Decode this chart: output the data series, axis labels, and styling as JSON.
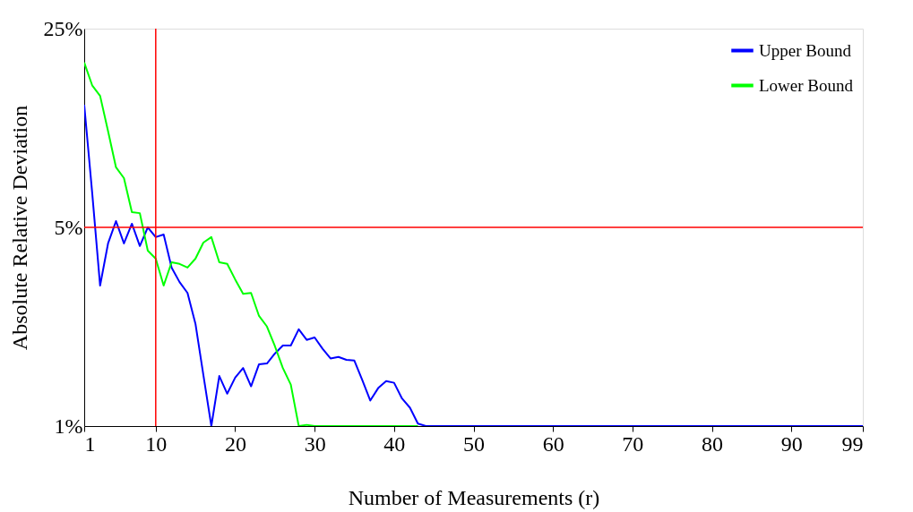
{
  "chart_data": {
    "type": "line",
    "xlabel": "Number of Measurements (r)",
    "ylabel": "Absolute Relative Deviation",
    "x": [
      1,
      2,
      3,
      4,
      5,
      6,
      7,
      8,
      9,
      10,
      11,
      12,
      13,
      14,
      15,
      16,
      17,
      18,
      19,
      20,
      21,
      22,
      23,
      24,
      25,
      26,
      27,
      28,
      29,
      30,
      31,
      32,
      33,
      34,
      35,
      36,
      37,
      38,
      39,
      40,
      41,
      42,
      43,
      44,
      45,
      46,
      47,
      48,
      49,
      50,
      51,
      52,
      53,
      54,
      55,
      56,
      57,
      58,
      59,
      60,
      61,
      62,
      63,
      64,
      65,
      66,
      67,
      68,
      69,
      70,
      71,
      72,
      73,
      74,
      75,
      76,
      77,
      78,
      79,
      80,
      81,
      82,
      83,
      84,
      85,
      86,
      87,
      88,
      89,
      90,
      91,
      92,
      93,
      94,
      95,
      96,
      97,
      98,
      99
    ],
    "series": [
      {
        "name": "Upper Bound",
        "color": "#0000ff",
        "values": [
          13.5,
          6.63,
          3.12,
          4.39,
          5.26,
          4.39,
          5.15,
          4.3,
          5.0,
          4.62,
          4.72,
          3.61,
          3.21,
          2.94,
          2.29,
          1.51,
          1.0,
          1.5,
          1.3,
          1.48,
          1.6,
          1.38,
          1.65,
          1.66,
          1.8,
          1.92,
          1.92,
          2.19,
          2.01,
          2.05,
          1.87,
          1.73,
          1.75,
          1.71,
          1.7,
          1.45,
          1.23,
          1.36,
          1.44,
          1.42,
          1.25,
          1.16,
          1.02,
          1,
          1,
          1,
          1,
          1,
          1,
          1,
          1,
          1,
          1,
          1,
          1,
          1,
          1,
          1,
          1,
          1,
          1,
          1,
          1,
          1,
          1,
          1,
          1,
          1,
          1,
          1,
          1,
          1,
          1,
          1,
          1,
          1,
          1,
          1,
          1,
          1,
          1,
          1,
          1,
          1,
          1,
          1,
          1,
          1,
          1,
          1,
          1,
          1,
          1,
          1,
          1,
          1,
          1,
          1,
          1
        ]
      },
      {
        "name": "Lower Bound",
        "color": "#00ff00",
        "values": [
          19.0,
          15.8,
          14.5,
          10.9,
          8.13,
          7.45,
          5.66,
          5.61,
          4.14,
          3.88,
          3.12,
          3.77,
          3.72,
          3.61,
          3.88,
          4.42,
          4.62,
          3.77,
          3.72,
          3.28,
          2.92,
          2.94,
          2.44,
          2.24,
          1.91,
          1.6,
          1.4,
          1.0,
          1.01,
          1,
          1,
          1,
          1,
          1,
          1,
          1,
          1,
          1,
          1,
          1,
          1,
          1,
          1,
          null,
          null,
          null,
          null,
          null,
          null,
          null,
          null,
          null,
          null,
          null,
          null,
          null,
          null,
          null,
          null,
          null,
          null,
          null,
          null,
          null,
          null,
          null,
          null,
          null,
          null,
          null,
          null,
          null,
          null,
          null,
          null,
          null,
          null,
          null,
          null,
          null,
          null,
          null,
          null,
          null,
          null,
          null,
          null,
          null,
          null,
          null,
          null,
          null,
          null,
          null,
          null,
          null,
          null,
          null,
          null
        ]
      }
    ],
    "xlim": [
      1,
      99
    ],
    "xticks": [
      1,
      10,
      20,
      30,
      40,
      50,
      60,
      70,
      80,
      90,
      99
    ],
    "ylim": [
      1,
      25
    ],
    "yticks": [
      {
        "value": 1,
        "label": "1%"
      },
      {
        "value": 5,
        "label": "5%"
      },
      {
        "value": 25,
        "label": "25%"
      }
    ],
    "log": "y",
    "grid": false,
    "legend": "top right",
    "marker": "none",
    "line_style": "solid",
    "ref_lines": [
      {
        "axis": "x",
        "value": 10,
        "color": "#ff0000"
      },
      {
        "axis": "y",
        "value": 5,
        "color": "#ff0000"
      }
    ]
  }
}
